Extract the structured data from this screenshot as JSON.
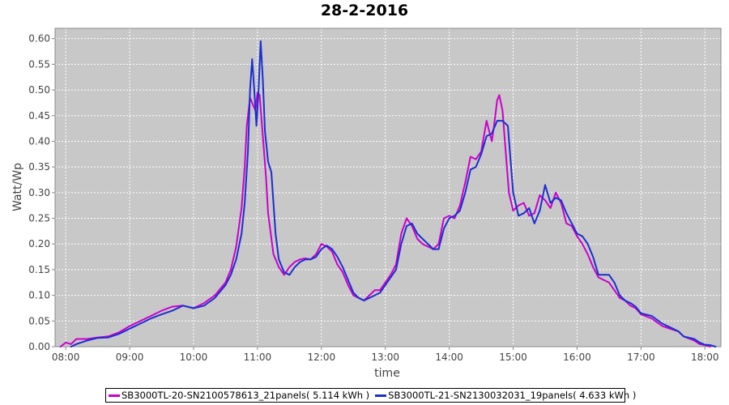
{
  "chart_data": {
    "type": "line",
    "title": "28-2-2016",
    "xlabel": "time",
    "ylabel": "Watt/Wp",
    "xlim": [
      "07:50",
      "18:15"
    ],
    "ylim": [
      0,
      0.62
    ],
    "grid": true,
    "legend_position": "bottom",
    "x_ticks": [
      "08:00",
      "09:00",
      "10:00",
      "11:00",
      "12:00",
      "13:00",
      "14:00",
      "15:00",
      "16:00",
      "17:00",
      "18:00"
    ],
    "y_ticks": [
      "0.00",
      "0.05",
      "0.10",
      "0.15",
      "0.20",
      "0.25",
      "0.30",
      "0.35",
      "0.40",
      "0.45",
      "0.50",
      "0.55",
      "0.60"
    ],
    "series": [
      {
        "name": "SB3000TL-20-SN2100578613_21panels( 5.114 kWh )",
        "color": "#cc00cc",
        "points": [
          [
            "07:55",
            0.0
          ],
          [
            "08:00",
            0.008
          ],
          [
            "08:05",
            0.005
          ],
          [
            "08:10",
            0.015
          ],
          [
            "08:20",
            0.015
          ],
          [
            "08:30",
            0.018
          ],
          [
            "08:40",
            0.02
          ],
          [
            "08:50",
            0.028
          ],
          [
            "09:00",
            0.04
          ],
          [
            "09:10",
            0.05
          ],
          [
            "09:20",
            0.06
          ],
          [
            "09:30",
            0.07
          ],
          [
            "09:40",
            0.078
          ],
          [
            "09:50",
            0.08
          ],
          [
            "10:00",
            0.075
          ],
          [
            "10:10",
            0.085
          ],
          [
            "10:20",
            0.1
          ],
          [
            "10:30",
            0.125
          ],
          [
            "10:35",
            0.15
          ],
          [
            "10:40",
            0.195
          ],
          [
            "10:45",
            0.27
          ],
          [
            "10:48",
            0.35
          ],
          [
            "10:50",
            0.43
          ],
          [
            "10:53",
            0.485
          ],
          [
            "10:56",
            0.47
          ],
          [
            "10:58",
            0.46
          ],
          [
            "11:00",
            0.495
          ],
          [
            "11:02",
            0.49
          ],
          [
            "11:05",
            0.41
          ],
          [
            "11:08",
            0.33
          ],
          [
            "11:10",
            0.26
          ],
          [
            "11:15",
            0.18
          ],
          [
            "11:20",
            0.155
          ],
          [
            "11:25",
            0.14
          ],
          [
            "11:30",
            0.155
          ],
          [
            "11:35",
            0.165
          ],
          [
            "11:40",
            0.17
          ],
          [
            "11:45",
            0.172
          ],
          [
            "11:50",
            0.17
          ],
          [
            "11:55",
            0.18
          ],
          [
            "12:00",
            0.2
          ],
          [
            "12:05",
            0.195
          ],
          [
            "12:10",
            0.185
          ],
          [
            "12:15",
            0.16
          ],
          [
            "12:20",
            0.145
          ],
          [
            "12:25",
            0.12
          ],
          [
            "12:30",
            0.1
          ],
          [
            "12:35",
            0.095
          ],
          [
            "12:40",
            0.09
          ],
          [
            "12:45",
            0.1
          ],
          [
            "12:50",
            0.11
          ],
          [
            "12:55",
            0.11
          ],
          [
            "13:00",
            0.125
          ],
          [
            "13:05",
            0.14
          ],
          [
            "13:10",
            0.16
          ],
          [
            "13:15",
            0.22
          ],
          [
            "13:20",
            0.25
          ],
          [
            "13:25",
            0.235
          ],
          [
            "13:30",
            0.21
          ],
          [
            "13:35",
            0.2
          ],
          [
            "13:40",
            0.195
          ],
          [
            "13:45",
            0.19
          ],
          [
            "13:50",
            0.2
          ],
          [
            "13:55",
            0.25
          ],
          [
            "14:00",
            0.255
          ],
          [
            "14:05",
            0.25
          ],
          [
            "14:10",
            0.275
          ],
          [
            "14:15",
            0.32
          ],
          [
            "14:20",
            0.37
          ],
          [
            "14:25",
            0.365
          ],
          [
            "14:30",
            0.38
          ],
          [
            "14:35",
            0.44
          ],
          [
            "14:40",
            0.4
          ],
          [
            "14:42",
            0.43
          ],
          [
            "14:45",
            0.48
          ],
          [
            "14:47",
            0.49
          ],
          [
            "14:50",
            0.46
          ],
          [
            "14:53",
            0.38
          ],
          [
            "14:56",
            0.3
          ],
          [
            "15:00",
            0.265
          ],
          [
            "15:05",
            0.275
          ],
          [
            "15:10",
            0.28
          ],
          [
            "15:15",
            0.255
          ],
          [
            "15:20",
            0.26
          ],
          [
            "15:25",
            0.295
          ],
          [
            "15:30",
            0.285
          ],
          [
            "15:35",
            0.27
          ],
          [
            "15:40",
            0.3
          ],
          [
            "15:45",
            0.28
          ],
          [
            "15:50",
            0.24
          ],
          [
            "15:55",
            0.235
          ],
          [
            "16:00",
            0.215
          ],
          [
            "16:05",
            0.2
          ],
          [
            "16:10",
            0.18
          ],
          [
            "16:15",
            0.155
          ],
          [
            "16:20",
            0.135
          ],
          [
            "16:25",
            0.13
          ],
          [
            "16:30",
            0.125
          ],
          [
            "16:35",
            0.11
          ],
          [
            "16:40",
            0.095
          ],
          [
            "16:45",
            0.09
          ],
          [
            "16:50",
            0.08
          ],
          [
            "16:55",
            0.075
          ],
          [
            "17:00",
            0.063
          ],
          [
            "17:10",
            0.055
          ],
          [
            "17:20",
            0.04
          ],
          [
            "17:30",
            0.033
          ],
          [
            "17:35",
            0.03
          ],
          [
            "17:40",
            0.02
          ],
          [
            "17:50",
            0.012
          ],
          [
            "17:55",
            0.005
          ],
          [
            "18:00",
            0.003
          ],
          [
            "18:05",
            0.0
          ]
        ]
      },
      {
        "name": "SB3000TL-21-SN2130032031_19panels( 4.633 kWh )",
        "color": "#1a2fd0",
        "points": [
          [
            "08:05",
            0.0
          ],
          [
            "08:10",
            0.005
          ],
          [
            "08:20",
            0.012
          ],
          [
            "08:30",
            0.017
          ],
          [
            "08:40",
            0.018
          ],
          [
            "08:50",
            0.025
          ],
          [
            "09:00",
            0.035
          ],
          [
            "09:10",
            0.045
          ],
          [
            "09:20",
            0.055
          ],
          [
            "09:30",
            0.063
          ],
          [
            "09:40",
            0.07
          ],
          [
            "09:50",
            0.08
          ],
          [
            "10:00",
            0.075
          ],
          [
            "10:10",
            0.08
          ],
          [
            "10:20",
            0.095
          ],
          [
            "10:30",
            0.12
          ],
          [
            "10:35",
            0.14
          ],
          [
            "10:40",
            0.17
          ],
          [
            "10:45",
            0.22
          ],
          [
            "10:48",
            0.28
          ],
          [
            "10:51",
            0.38
          ],
          [
            "10:53",
            0.5
          ],
          [
            "10:55",
            0.56
          ],
          [
            "10:57",
            0.5
          ],
          [
            "10:59",
            0.43
          ],
          [
            "11:01",
            0.5
          ],
          [
            "11:03",
            0.595
          ],
          [
            "11:05",
            0.52
          ],
          [
            "11:07",
            0.42
          ],
          [
            "11:10",
            0.36
          ],
          [
            "11:13",
            0.34
          ],
          [
            "11:17",
            0.22
          ],
          [
            "11:20",
            0.17
          ],
          [
            "11:25",
            0.145
          ],
          [
            "11:30",
            0.14
          ],
          [
            "11:35",
            0.155
          ],
          [
            "11:40",
            0.165
          ],
          [
            "11:45",
            0.17
          ],
          [
            "11:50",
            0.17
          ],
          [
            "11:55",
            0.175
          ],
          [
            "12:00",
            0.19
          ],
          [
            "12:05",
            0.197
          ],
          [
            "12:10",
            0.19
          ],
          [
            "12:15",
            0.175
          ],
          [
            "12:20",
            0.155
          ],
          [
            "12:25",
            0.13
          ],
          [
            "12:30",
            0.105
          ],
          [
            "12:35",
            0.095
          ],
          [
            "12:40",
            0.09
          ],
          [
            "12:45",
            0.095
          ],
          [
            "12:50",
            0.1
          ],
          [
            "12:55",
            0.105
          ],
          [
            "13:00",
            0.12
          ],
          [
            "13:05",
            0.135
          ],
          [
            "13:10",
            0.15
          ],
          [
            "13:15",
            0.2
          ],
          [
            "13:20",
            0.235
          ],
          [
            "13:25",
            0.24
          ],
          [
            "13:30",
            0.22
          ],
          [
            "13:35",
            0.21
          ],
          [
            "13:40",
            0.2
          ],
          [
            "13:45",
            0.19
          ],
          [
            "13:50",
            0.19
          ],
          [
            "13:55",
            0.23
          ],
          [
            "14:00",
            0.25
          ],
          [
            "14:05",
            0.255
          ],
          [
            "14:10",
            0.265
          ],
          [
            "14:15",
            0.3
          ],
          [
            "14:20",
            0.345
          ],
          [
            "14:25",
            0.35
          ],
          [
            "14:30",
            0.375
          ],
          [
            "14:35",
            0.41
          ],
          [
            "14:40",
            0.415
          ],
          [
            "14:45",
            0.44
          ],
          [
            "14:50",
            0.44
          ],
          [
            "14:55",
            0.43
          ],
          [
            "15:00",
            0.3
          ],
          [
            "15:05",
            0.255
          ],
          [
            "15:10",
            0.26
          ],
          [
            "15:15",
            0.27
          ],
          [
            "15:20",
            0.24
          ],
          [
            "15:25",
            0.265
          ],
          [
            "15:30",
            0.315
          ],
          [
            "15:35",
            0.28
          ],
          [
            "15:40",
            0.29
          ],
          [
            "15:45",
            0.285
          ],
          [
            "15:50",
            0.26
          ],
          [
            "15:55",
            0.24
          ],
          [
            "16:00",
            0.22
          ],
          [
            "16:05",
            0.215
          ],
          [
            "16:10",
            0.2
          ],
          [
            "16:15",
            0.175
          ],
          [
            "16:20",
            0.14
          ],
          [
            "16:25",
            0.14
          ],
          [
            "16:30",
            0.14
          ],
          [
            "16:35",
            0.125
          ],
          [
            "16:40",
            0.1
          ],
          [
            "16:45",
            0.09
          ],
          [
            "16:50",
            0.085
          ],
          [
            "16:55",
            0.078
          ],
          [
            "17:00",
            0.065
          ],
          [
            "17:10",
            0.06
          ],
          [
            "17:20",
            0.045
          ],
          [
            "17:30",
            0.035
          ],
          [
            "17:35",
            0.03
          ],
          [
            "17:40",
            0.02
          ],
          [
            "17:50",
            0.015
          ],
          [
            "17:55",
            0.008
          ],
          [
            "18:00",
            0.004
          ],
          [
            "18:05",
            0.003
          ],
          [
            "18:10",
            0.0
          ]
        ]
      }
    ]
  }
}
